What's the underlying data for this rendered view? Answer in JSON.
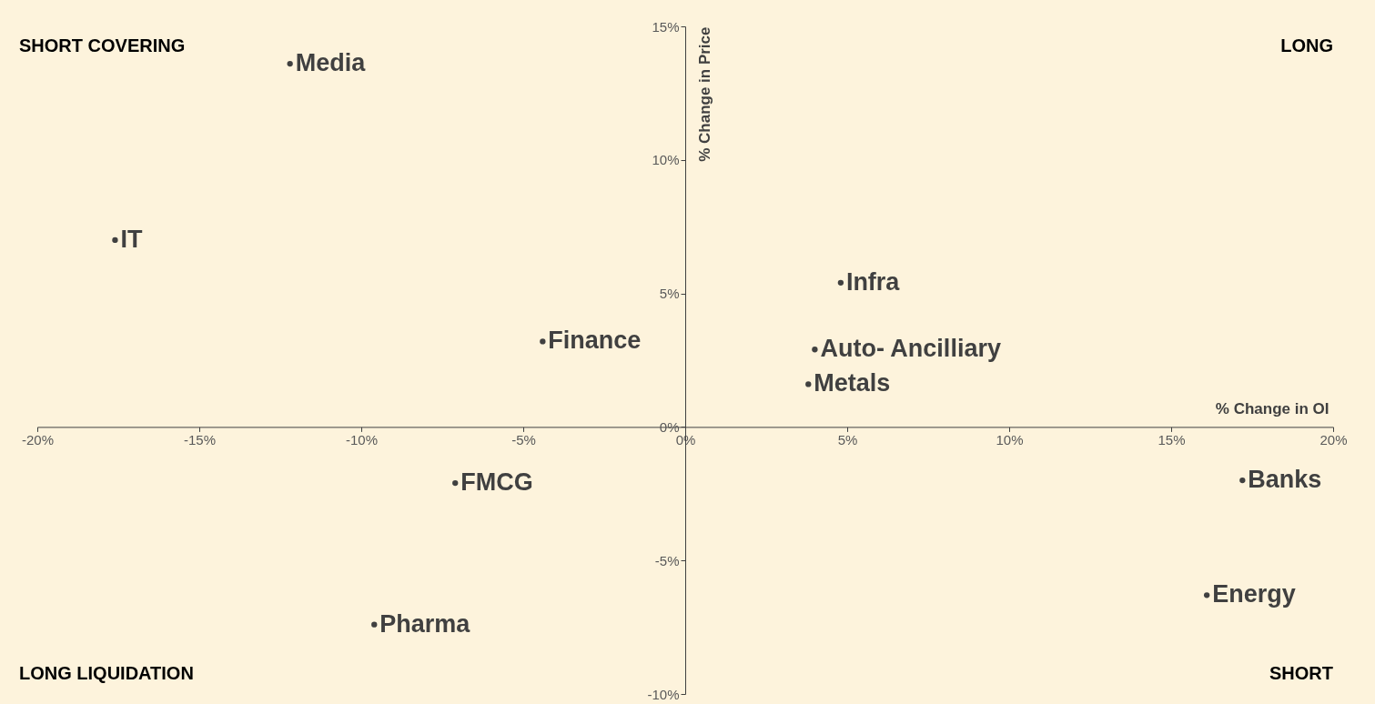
{
  "chart_data": {
    "type": "scatter",
    "xlabel": "% Change in OI",
    "ylabel": "% Change in Price",
    "xlim": [
      -20,
      20
    ],
    "ylim": [
      -10,
      15
    ],
    "xticks": [
      {
        "value": -20,
        "label": "-20%"
      },
      {
        "value": -15,
        "label": "-15%"
      },
      {
        "value": -10,
        "label": "-10%"
      },
      {
        "value": -5,
        "label": "-5%"
      },
      {
        "value": 0,
        "label": "0%"
      },
      {
        "value": 5,
        "label": "5%"
      },
      {
        "value": 10,
        "label": "10%"
      },
      {
        "value": 15,
        "label": "15%"
      },
      {
        "value": 20,
        "label": "20%"
      }
    ],
    "yticks": [
      {
        "value": -10,
        "label": "-10%"
      },
      {
        "value": -5,
        "label": "-5%"
      },
      {
        "value": 0,
        "label": "0%"
      },
      {
        "value": 5,
        "label": "5%"
      },
      {
        "value": 10,
        "label": "10%"
      },
      {
        "value": 15,
        "label": "15%"
      }
    ],
    "marker": "circle",
    "grid": false,
    "annotations": [
      "SHORT COVERING",
      "LONG",
      "LONG LIQUIDATION",
      "SHORT"
    ],
    "series": [
      {
        "name": "Media",
        "color": "#404040",
        "x": [
          -12.2
        ],
        "values": [
          13.6
        ]
      },
      {
        "name": "IT",
        "color": "#404040",
        "x": [
          -17.6
        ],
        "values": [
          7.0
        ]
      },
      {
        "name": "Infra",
        "color": "#404040",
        "x": [
          4.8
        ],
        "values": [
          5.4
        ]
      },
      {
        "name": "Finance",
        "color": "#404040",
        "x": [
          -4.4
        ],
        "values": [
          3.2
        ]
      },
      {
        "name": "Auto- Ancilliary",
        "color": "#404040",
        "x": [
          4.0
        ],
        "values": [
          2.9
        ]
      },
      {
        "name": "Metals",
        "color": "#404040",
        "x": [
          3.8
        ],
        "values": [
          1.6
        ]
      },
      {
        "name": "FMCG",
        "color": "#404040",
        "x": [
          -7.1
        ],
        "values": [
          -2.1
        ]
      },
      {
        "name": "Banks",
        "color": "#404040",
        "x": [
          17.2
        ],
        "values": [
          -2.0
        ]
      },
      {
        "name": "Energy",
        "color": "#404040",
        "x": [
          16.1
        ],
        "values": [
          -6.3
        ]
      },
      {
        "name": "Pharma",
        "color": "#404040",
        "x": [
          -9.6
        ],
        "values": [
          -7.4
        ]
      }
    ]
  }
}
